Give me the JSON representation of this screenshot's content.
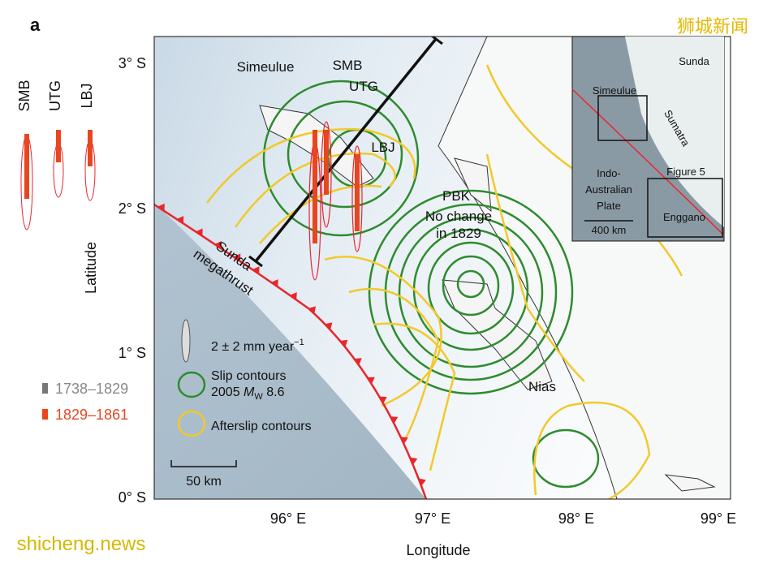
{
  "panel_label": "a",
  "watermark_top": "狮城新闻",
  "watermark_bottom": "shicheng.news",
  "side_labels": [
    "SMB",
    "UTG",
    "LBJ"
  ],
  "side_legend": [
    "1738–1829",
    "1829–1861"
  ],
  "axes": {
    "x_label": "Longitude",
    "y_label": "Latitude",
    "x_ticks": [
      "96° E",
      "97° E",
      "98° E",
      "99° E"
    ],
    "y_ticks": [
      "3° S",
      "2° S",
      "1° S",
      "0° S"
    ]
  },
  "map_labels": {
    "simeulue": "Simeulue",
    "smb": "SMB",
    "utg": "UTG",
    "lbj": "LBJ",
    "pbk": "PBK",
    "no_change": [
      "No change",
      "in 1829"
    ],
    "megathrust": [
      "Sunda",
      "megathrust"
    ],
    "nias": "Nias"
  },
  "legend": {
    "rate": "2 ± 2 mm year",
    "rate_exp": "−1",
    "slip": [
      "Slip contours",
      "2005",
      "M",
      "W",
      "8.6"
    ],
    "afterslip": "Afterslip contours",
    "scale": "50 km"
  },
  "inset": {
    "sunda": "Sunda",
    "simeulue": "Simeulue",
    "sumatra": "Sumatra",
    "plate": [
      "Indo-",
      "Australian",
      "Plate"
    ],
    "figure5": "Figure 5",
    "enggano": "Enggano",
    "scale": "400 km"
  }
}
